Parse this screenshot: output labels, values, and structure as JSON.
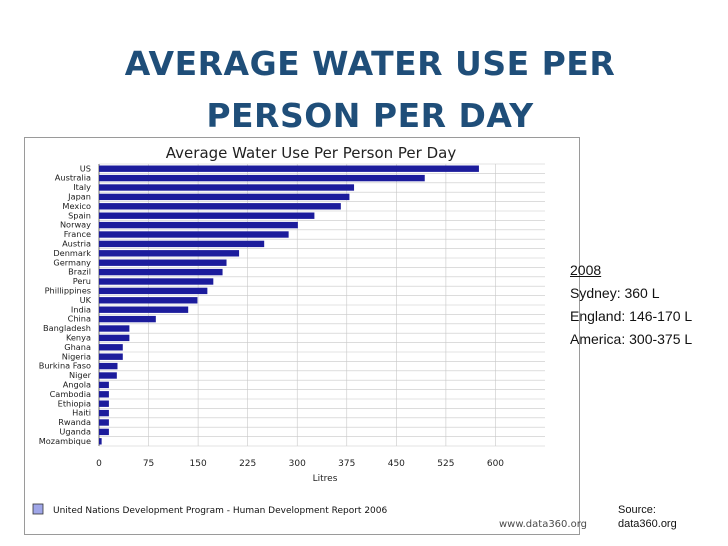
{
  "slide": {
    "title_line1": "AVERAGE WATER USE PER",
    "title_line2": "PERSON PER DAY"
  },
  "notes": {
    "year": "2008",
    "sydney": "Sydney: 360 L",
    "england": "England: 146-170 L",
    "america": "America: 300-375 L"
  },
  "source": {
    "line1": "Source:",
    "line2": "data360.org"
  },
  "colors": {
    "bar": "#1c1c9c",
    "grid": "#c8c8c8",
    "title": "#1f4e79",
    "legend_swatch": "#9fa6e8"
  },
  "chart_data": {
    "type": "bar",
    "orientation": "horizontal",
    "title": "Average Water Use Per Person Per Day",
    "xlabel": "Litres",
    "ylabel": "",
    "xlim": [
      0,
      675
    ],
    "xticks": [
      0,
      75,
      150,
      225,
      300,
      375,
      450,
      525,
      600
    ],
    "grid": true,
    "categories": [
      "US",
      "Australia",
      "Italy",
      "Japan",
      "Mexico",
      "Spain",
      "Norway",
      "France",
      "Austria",
      "Denmark",
      "Germany",
      "Brazil",
      "Peru",
      "Phillippines",
      "UK",
      "India",
      "China",
      "Bangladesh",
      "Kenya",
      "Ghana",
      "Nigeria",
      "Burkina Faso",
      "Niger",
      "Angola",
      "Cambodia",
      "Ethiopia",
      "Haiti",
      "Rwanda",
      "Uganda",
      "Mozambique"
    ],
    "values": [
      575,
      493,
      386,
      379,
      366,
      326,
      301,
      287,
      250,
      212,
      193,
      187,
      173,
      164,
      149,
      135,
      86,
      46,
      46,
      36,
      36,
      28,
      27,
      15,
      15,
      15,
      15,
      15,
      15,
      4
    ],
    "legend": "United Nations Development Program - Human Development Report 2006",
    "watermark": "www.data360.org"
  }
}
